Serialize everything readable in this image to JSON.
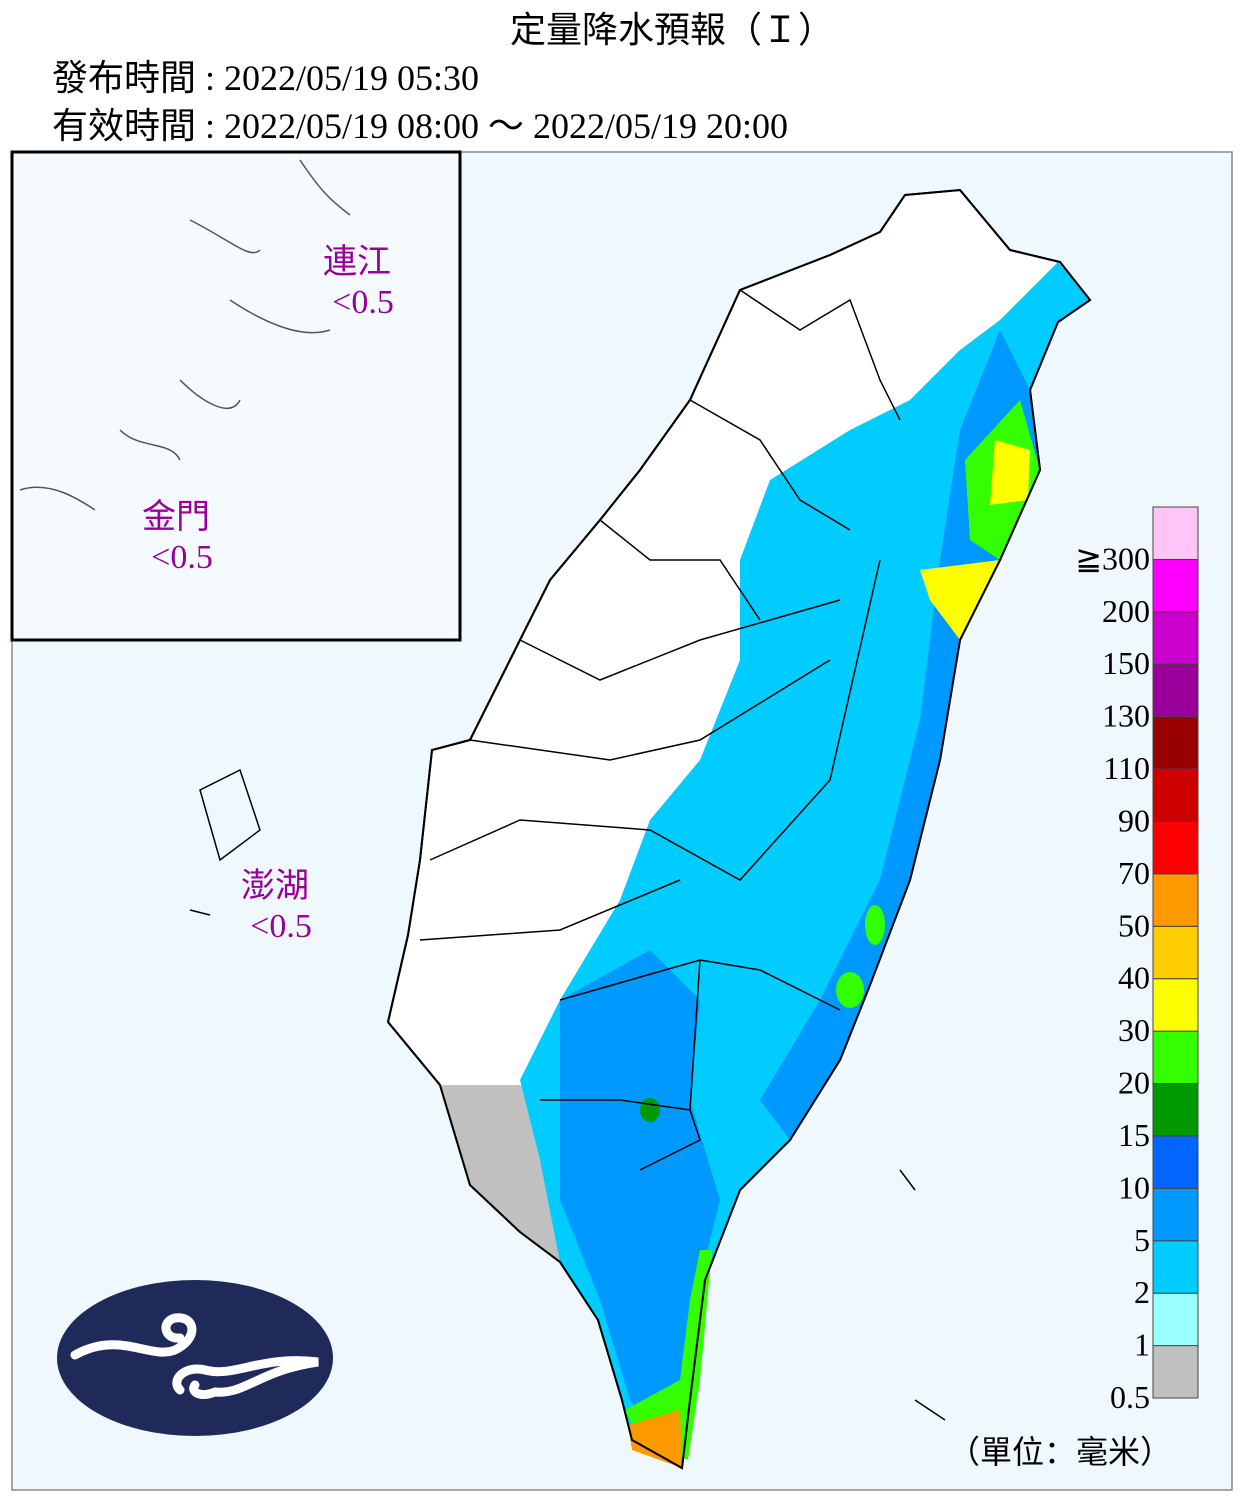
{
  "header": {
    "title": "定量降水預報（Ｉ）",
    "issued": "發布時間 : 2022/05/19 05:30",
    "valid": "有效時間 : 2022/05/19 08:00 ～ 2022/05/19 20:00"
  },
  "regions": [
    {
      "name": "連江",
      "value": "<0.5"
    },
    {
      "name": "金門",
      "value": "<0.5"
    },
    {
      "name": "澎湖",
      "value": "<0.5"
    }
  ],
  "legend": {
    "unit": "（單位：毫米）",
    "bins": [
      {
        "label": "0.5",
        "color": "#c0c0c0"
      },
      {
        "label": "1",
        "color": "#99ffff"
      },
      {
        "label": "2",
        "color": "#00ccff"
      },
      {
        "label": "5",
        "color": "#0099ff"
      },
      {
        "label": "10",
        "color": "#0066ff"
      },
      {
        "label": "15",
        "color": "#009900"
      },
      {
        "label": "20",
        "color": "#33ff00"
      },
      {
        "label": "30",
        "color": "#ffff00"
      },
      {
        "label": "40",
        "color": "#ffcc00"
      },
      {
        "label": "50",
        "color": "#ff9900"
      },
      {
        "label": "70",
        "color": "#ff0000"
      },
      {
        "label": "90",
        "color": "#cc0000"
      },
      {
        "label": "110",
        "color": "#990000"
      },
      {
        "label": "130",
        "color": "#990099"
      },
      {
        "label": "150",
        "color": "#cc00cc"
      },
      {
        "label": "200",
        "color": "#ff00ff"
      },
      {
        "label": "≧300",
        "color": "#ffc6f5"
      }
    ]
  }
}
